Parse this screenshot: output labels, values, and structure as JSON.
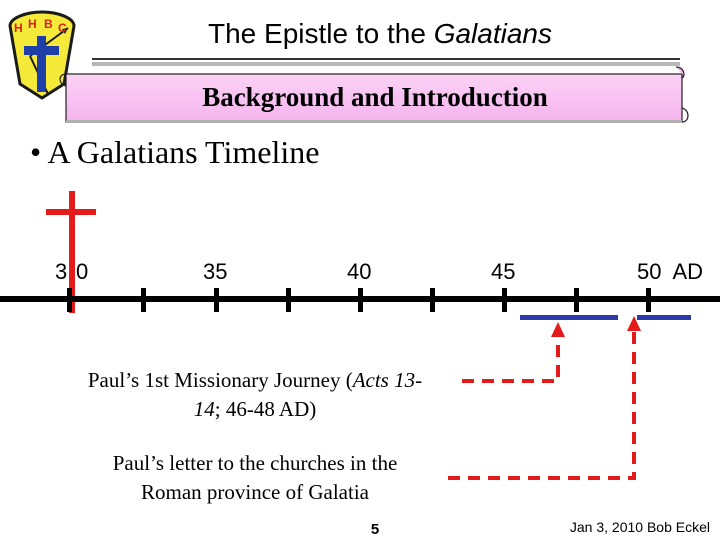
{
  "slide": {
    "title": "The Epistle to the ",
    "title_emphasis": "Galatians",
    "subtitle": "Background and Introduction",
    "bullet_char": "•",
    "bullet_text": "A Galatians Timeline",
    "page_number": "5",
    "footer": "Jan 3, 2010 Bob Eckel"
  },
  "logo": {
    "letters": [
      "H",
      "H",
      "B",
      "C"
    ],
    "icon": "cross-compass-logo",
    "colors": {
      "fill": "#f5e93a",
      "outline": "#1a1a1a",
      "cross": "#1f3fa8",
      "letters": "#d81e1e"
    }
  },
  "timeline": {
    "labels": [
      "3",
      "0",
      "35",
      "40",
      "45",
      "50  AD"
    ],
    "cross_icon": "cross-icon",
    "colors": {
      "axis": "#000000",
      "cross": "#e31b1b",
      "period": "#2b3aa8",
      "arrow": "#e31b1b"
    }
  },
  "events": {
    "journey_text_1": "Paul’s 1st Missionary Journey (",
    "journey_ref_1": "Acts 13-",
    "journey_ref_2": "14",
    "journey_text_2": "; 46-48 AD)",
    "letter_line_1": "Paul’s letter to the churches in the",
    "letter_line_2": "Roman province of Galatia"
  }
}
